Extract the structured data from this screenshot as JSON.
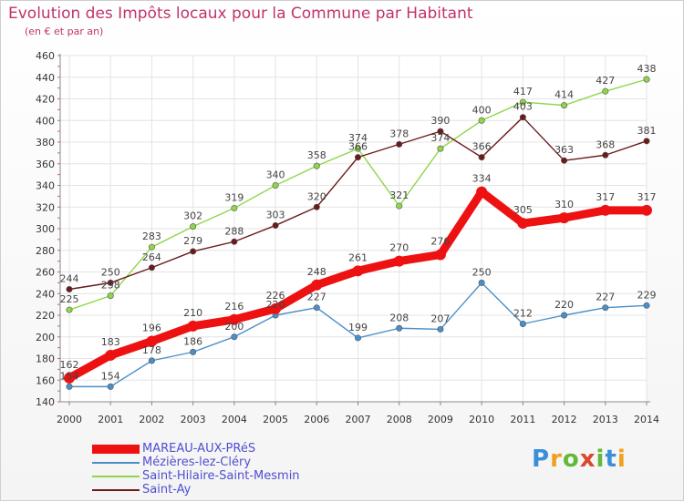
{
  "header": {
    "title": "Evolution des Impôts locaux pour la Commune par Habitant",
    "subtitle": "(en € et par an)"
  },
  "logo": {
    "text": "Proxiti",
    "colors": [
      "#3a8fd6",
      "#f2a01d",
      "#62b83a",
      "#d84a2a",
      "#62b83a",
      "#3a8fd6",
      "#f2a01d"
    ]
  },
  "chart_data": {
    "type": "line",
    "x": [
      2000,
      2001,
      2002,
      2003,
      2004,
      2005,
      2006,
      2007,
      2008,
      2009,
      2010,
      2011,
      2012,
      2013,
      2014
    ],
    "ylim": [
      140,
      460
    ],
    "yticks": [
      140,
      160,
      180,
      200,
      220,
      240,
      260,
      280,
      300,
      320,
      340,
      360,
      380,
      400,
      420,
      440,
      460
    ],
    "grid": true,
    "legend_position": "bottom-left",
    "series": [
      {
        "name": "MAREAU-AUX-PRéS",
        "color": "#ee1111",
        "emphasis": true,
        "values": [
          162,
          183,
          196,
          210,
          216,
          226,
          248,
          261,
          270,
          276,
          334,
          305,
          310,
          317,
          317
        ]
      },
      {
        "name": "Mézières-lez-Cléry",
        "color": "#4a8fc9",
        "values": [
          154,
          154,
          178,
          186,
          200,
          220,
          227,
          199,
          208,
          207,
          250,
          212,
          220,
          227,
          229
        ]
      },
      {
        "name": "Saint-Hilaire-Saint-Mesmin",
        "color": "#8fd64a",
        "values": [
          225,
          238,
          283,
          302,
          319,
          340,
          358,
          374,
          321,
          374,
          400,
          417,
          414,
          427,
          438
        ]
      },
      {
        "name": "Saint-Ay",
        "color": "#6b1a1a",
        "values": [
          244,
          250,
          264,
          279,
          288,
          303,
          320,
          366,
          378,
          390,
          366,
          403,
          363,
          368,
          381
        ]
      }
    ]
  }
}
